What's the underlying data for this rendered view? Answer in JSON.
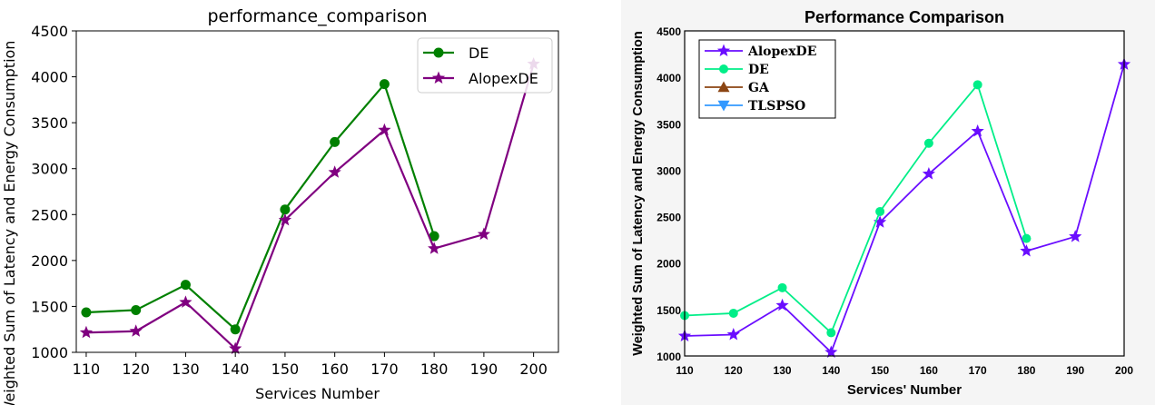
{
  "chart_data": [
    {
      "type": "line",
      "title": "performance_comparison",
      "xlabel": "Services Number",
      "ylabel": "Weighted Sum of Latency and Energy Consumption",
      "xlim": [
        108,
        205
      ],
      "ylim": [
        1000,
        4500
      ],
      "xticks": [
        110,
        120,
        130,
        140,
        150,
        160,
        170,
        180,
        190,
        200
      ],
      "yticks": [
        1000,
        1500,
        2000,
        2500,
        3000,
        3500,
        4000,
        4500
      ],
      "grid": false,
      "legend_position": "top-right",
      "series": [
        {
          "name": "DE",
          "color": "#008000",
          "marker": "circle",
          "x": [
            110,
            120,
            130,
            140,
            150,
            160,
            170,
            180
          ],
          "y": [
            1435,
            1460,
            1735,
            1250,
            2555,
            3290,
            3920,
            2265
          ]
        },
        {
          "name": "AlopexDE",
          "color": "#800080",
          "marker": "star",
          "x": [
            110,
            120,
            130,
            140,
            150,
            160,
            170,
            180,
            190,
            200
          ],
          "y": [
            1215,
            1230,
            1545,
            1040,
            2440,
            2960,
            3420,
            2130,
            2285,
            4140
          ]
        }
      ]
    },
    {
      "type": "line",
      "title": "Performance Comparison",
      "xlabel": "Services' Number",
      "ylabel": "Weighted Sum of Latency and Energy Consumption",
      "xlim": [
        110,
        200
      ],
      "ylim": [
        1000,
        4500
      ],
      "xticks": [
        110,
        120,
        130,
        140,
        150,
        160,
        170,
        180,
        190,
        200
      ],
      "yticks": [
        1000,
        1500,
        2000,
        2500,
        3000,
        3500,
        4000,
        4500
      ],
      "grid": false,
      "legend_position": "top-left",
      "series": [
        {
          "name": "AlopexDE",
          "color": "#6a0dff",
          "marker": "star",
          "x": [
            110,
            120,
            130,
            140,
            150,
            160,
            170,
            180,
            190,
            200
          ],
          "y": [
            1215,
            1230,
            1545,
            1040,
            2440,
            2960,
            3420,
            2130,
            2285,
            4140
          ]
        },
        {
          "name": "DE",
          "color": "#00ee88",
          "marker": "circle",
          "x": [
            110,
            120,
            130,
            140,
            150,
            160,
            170,
            180
          ],
          "y": [
            1435,
            1460,
            1735,
            1250,
            2555,
            3290,
            3920,
            2265
          ]
        },
        {
          "name": "GA",
          "color": "#8b4513",
          "marker": "triangle-up",
          "x": [],
          "y": []
        },
        {
          "name": "TLSPSO",
          "color": "#3399ff",
          "marker": "triangle-down",
          "x": [],
          "y": []
        }
      ]
    }
  ]
}
